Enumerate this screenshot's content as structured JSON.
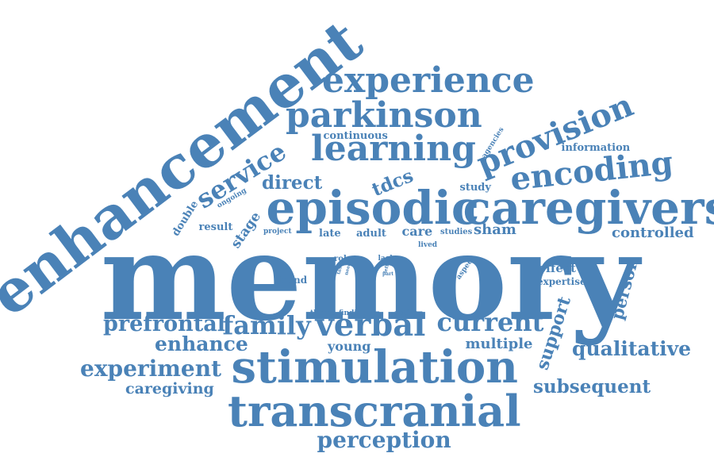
{
  "word_cloud": {
    "color": "#4a82b7",
    "words": [
      {
        "text": "memory",
        "weight": 1.0
      },
      {
        "text": "enhancement",
        "weight": 0.62
      },
      {
        "text": "episodic",
        "weight": 0.55
      },
      {
        "text": "caregivers",
        "weight": 0.55
      },
      {
        "text": "stimulation",
        "weight": 0.52
      },
      {
        "text": "transcranial",
        "weight": 0.5
      },
      {
        "text": "experience",
        "weight": 0.35
      },
      {
        "text": "parkinson",
        "weight": 0.38
      },
      {
        "text": "learning",
        "weight": 0.38
      },
      {
        "text": "provision",
        "weight": 0.3
      },
      {
        "text": "encoding",
        "weight": 0.3
      },
      {
        "text": "verbal",
        "weight": 0.3
      },
      {
        "text": "service",
        "weight": 0.24
      },
      {
        "text": "family",
        "weight": 0.24
      },
      {
        "text": "current",
        "weight": 0.24
      },
      {
        "text": "prefrontal",
        "weight": 0.2
      },
      {
        "text": "experiment",
        "weight": 0.2
      },
      {
        "text": "perception",
        "weight": 0.2
      },
      {
        "text": "enhance",
        "weight": 0.18
      },
      {
        "text": "qualitative",
        "weight": 0.17
      },
      {
        "text": "subsequent",
        "weight": 0.16
      },
      {
        "text": "support",
        "weight": 0.16
      },
      {
        "text": "person",
        "weight": 0.15
      },
      {
        "text": "direct",
        "weight": 0.16
      },
      {
        "text": "tdcs",
        "weight": 0.16
      },
      {
        "text": "caregiving",
        "weight": 0.13
      },
      {
        "text": "multiple",
        "weight": 0.12
      },
      {
        "text": "young",
        "weight": 0.11
      },
      {
        "text": "controlled",
        "weight": 0.12
      },
      {
        "text": "sham",
        "weight": 0.13
      },
      {
        "text": "continuous",
        "weight": 0.09
      },
      {
        "text": "information",
        "weight": 0.09
      },
      {
        "text": "stage",
        "weight": 0.1
      },
      {
        "text": "double",
        "weight": 0.09
      },
      {
        "text": "result",
        "weight": 0.08
      },
      {
        "text": "study",
        "weight": 0.08
      },
      {
        "text": "late",
        "weight": 0.08
      },
      {
        "text": "adult",
        "weight": 0.08
      },
      {
        "text": "care",
        "weight": 0.09
      },
      {
        "text": "effect",
        "weight": 0.09
      },
      {
        "text": "expertise",
        "weight": 0.08
      },
      {
        "text": "blind",
        "weight": 0.08
      },
      {
        "text": "role",
        "weight": 0.06
      },
      {
        "text": "lack",
        "weight": 0.05
      },
      {
        "text": "ongoing",
        "weight": 0.05
      },
      {
        "text": "agencies",
        "weight": 0.05
      },
      {
        "text": "project",
        "weight": 0.05
      },
      {
        "text": "studies",
        "weight": 0.05
      },
      {
        "text": "lived",
        "weight": 0.05
      },
      {
        "text": "aspect",
        "weight": 0.05
      },
      {
        "text": "task",
        "weight": 0.03
      },
      {
        "text": "need",
        "weight": 0.03
      },
      {
        "text": "left",
        "weight": 0.03
      },
      {
        "text": "part",
        "weight": 0.03
      },
      {
        "text": "theme",
        "weight": 0.05
      },
      {
        "text": "finding",
        "weight": 0.05
      },
      {
        "text": "active",
        "weight": 0.05
      }
    ]
  }
}
